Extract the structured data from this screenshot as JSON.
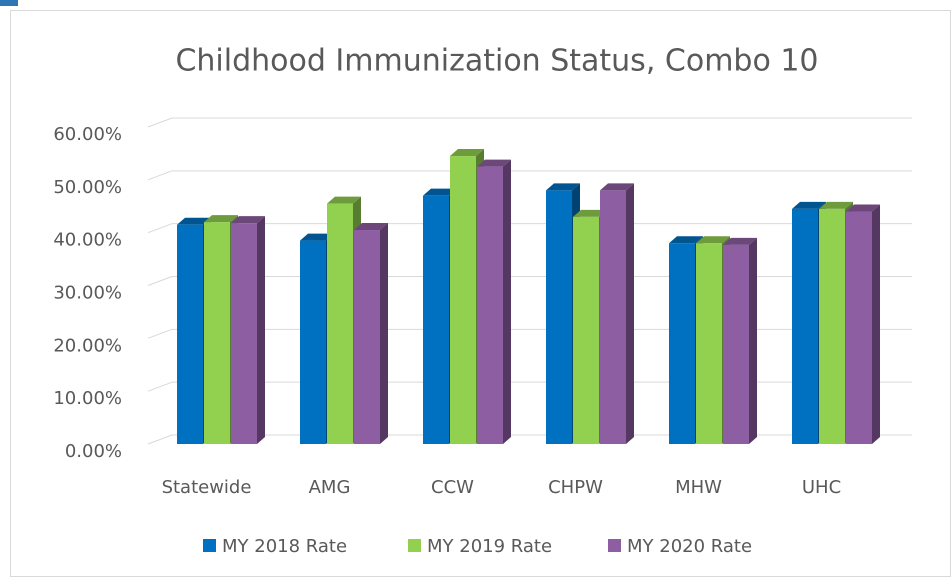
{
  "chart_data": {
    "type": "bar3d",
    "title": "Childhood Immunization Status, Combo 10",
    "categories": [
      "Statewide",
      "AMG",
      "CCW",
      "CHPW",
      "MHW",
      "UHC"
    ],
    "series": [
      {
        "name": "MY 2018 Rate",
        "color": "#0070c0",
        "values": [
          41.5,
          38.5,
          47,
          48,
          38,
          44.5
        ]
      },
      {
        "name": "MY 2019 Rate",
        "color": "#92d050",
        "values": [
          42,
          45.5,
          54.5,
          43,
          38,
          44.5
        ]
      },
      {
        "name": "MY 2020 Rate",
        "color": "#8e5ea2",
        "values": [
          41.8,
          40.5,
          52.5,
          48,
          37.7,
          44
        ]
      }
    ],
    "ylim": [
      0,
      60
    ],
    "yticks": [
      {
        "value": 0,
        "label": "0.00%"
      },
      {
        "value": 10,
        "label": "10.00%"
      },
      {
        "value": 20,
        "label": "20.00%"
      },
      {
        "value": 30,
        "label": "30.00%"
      },
      {
        "value": 40,
        "label": "40.00%"
      },
      {
        "value": 50,
        "label": "50.00%"
      },
      {
        "value": 60,
        "label": "60.00%"
      }
    ],
    "grid": true,
    "legend": "bottom"
  }
}
